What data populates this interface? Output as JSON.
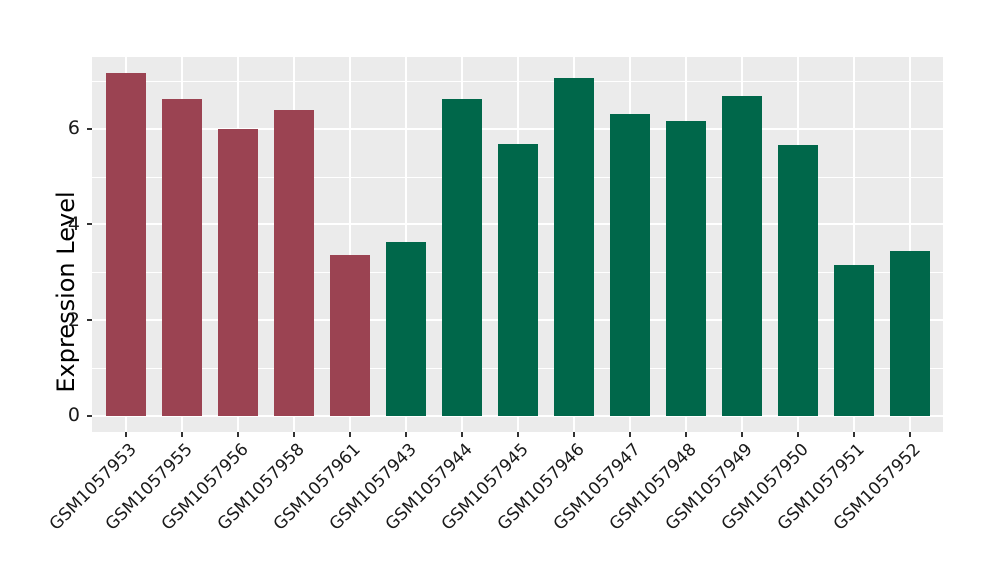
{
  "chart_data": {
    "type": "bar",
    "title": "",
    "xlabel": "",
    "ylabel": "Expression Level",
    "categories": [
      "GSM1057953",
      "GSM1057955",
      "GSM1057956",
      "GSM1057958",
      "GSM1057961",
      "GSM1057943",
      "GSM1057944",
      "GSM1057945",
      "GSM1057946",
      "GSM1057947",
      "GSM1057948",
      "GSM1057949",
      "GSM1057950",
      "GSM1057951",
      "GSM1057952"
    ],
    "values": [
      7.17,
      6.62,
      6.0,
      6.39,
      3.37,
      3.63,
      6.63,
      5.68,
      7.05,
      6.31,
      6.16,
      6.68,
      5.67,
      3.16,
      3.44
    ],
    "groups": [
      "groupA",
      "groupA",
      "groupA",
      "groupA",
      "groupA",
      "groupB",
      "groupB",
      "groupB",
      "groupB",
      "groupB",
      "groupB",
      "groupB",
      "groupB",
      "groupB",
      "groupB"
    ],
    "group_colors": {
      "groupA": "#9B4352",
      "groupB": "#00674A"
    },
    "y_ticks": [
      0,
      2,
      4,
      6
    ],
    "y_minor_ticks": [
      1,
      3,
      5,
      7
    ],
    "ylim": [
      -0.35,
      7.55
    ],
    "grid": true,
    "legend_position": "none",
    "panel_background": "#EBEBEB",
    "grid_color": "#FFFFFF",
    "tick_color": "#333333",
    "text_color": "#1a1a1a"
  }
}
